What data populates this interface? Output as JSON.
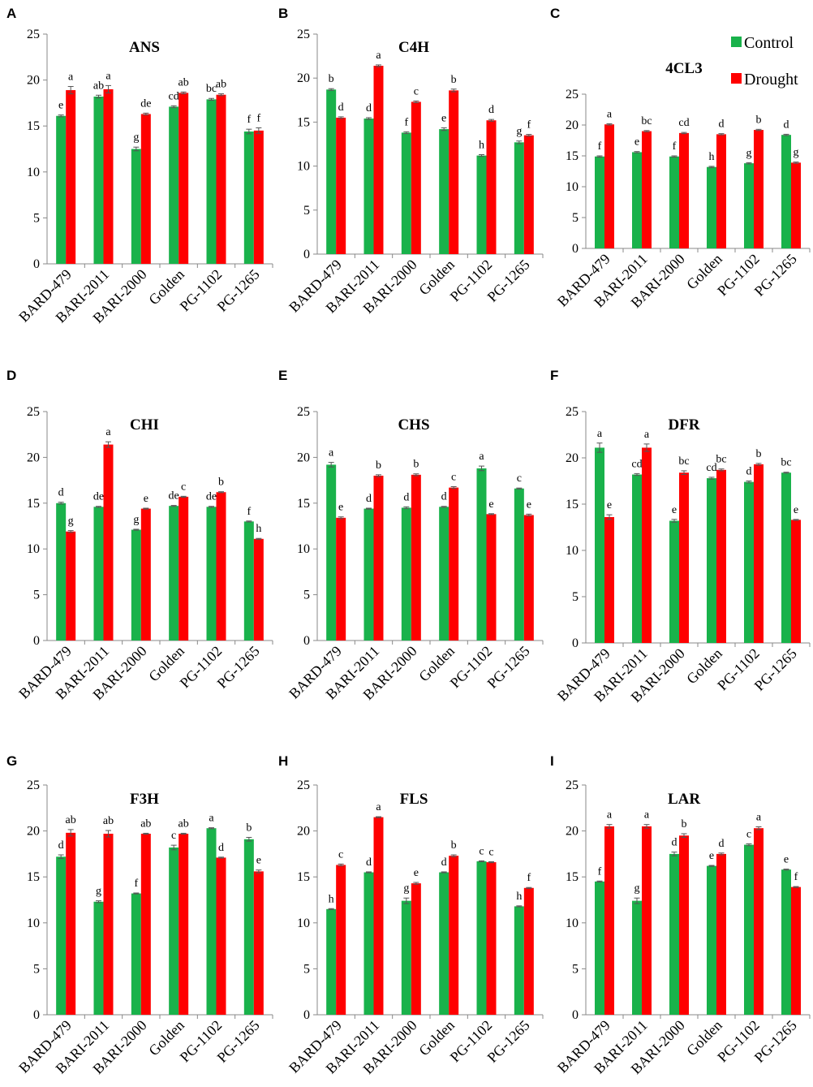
{
  "figure": {
    "legend": [
      {
        "name": "Control",
        "color": "#19b24b"
      },
      {
        "name": "Drought",
        "color": "#ff0000"
      }
    ]
  },
  "chart_data": [
    {
      "panel": "A",
      "type": "bar",
      "title": "ANS",
      "ylim": [
        0,
        25
      ],
      "yticks": [
        0,
        5,
        10,
        15,
        20,
        25
      ],
      "categories": [
        "BARD-479",
        "BARI-2011",
        "BARI-2000",
        "Golden",
        "PG-1102",
        "PG-1265"
      ],
      "series": [
        {
          "name": "Control",
          "values": [
            16.1,
            18.2,
            12.5,
            17.1,
            17.9,
            14.4
          ],
          "errors": [
            0.1,
            0.15,
            0.2,
            0.1,
            0.1,
            0.25
          ],
          "labels": [
            "e",
            "ab",
            "g",
            "cd",
            "bc",
            "f"
          ]
        },
        {
          "name": "Drought",
          "values": [
            18.9,
            19.0,
            16.3,
            18.6,
            18.4,
            14.5
          ],
          "errors": [
            0.4,
            0.4,
            0.1,
            0.1,
            0.1,
            0.3
          ],
          "labels": [
            "a",
            "a",
            "de",
            "ab",
            "ab",
            "f"
          ]
        }
      ]
    },
    {
      "panel": "B",
      "type": "bar",
      "title": "C4H",
      "ylim": [
        0,
        25
      ],
      "yticks": [
        0,
        5,
        10,
        15,
        20,
        25
      ],
      "categories": [
        "BARD-479",
        "BARI-2011",
        "BARI-2000",
        "Golden",
        "PG-1102",
        "PG-1265"
      ],
      "series": [
        {
          "name": "Control",
          "values": [
            18.7,
            15.4,
            13.8,
            14.2,
            11.2,
            12.7
          ],
          "errors": [
            0.1,
            0.1,
            0.1,
            0.15,
            0.1,
            0.15
          ],
          "labels": [
            "b",
            "d",
            "f",
            "e",
            "h",
            "g"
          ]
        },
        {
          "name": "Drought",
          "values": [
            15.5,
            21.4,
            17.3,
            18.6,
            15.2,
            13.5
          ],
          "errors": [
            0.1,
            0.1,
            0.1,
            0.15,
            0.1,
            0.1
          ],
          "labels": [
            "d",
            "a",
            "c",
            "b",
            "d",
            "f"
          ]
        }
      ]
    },
    {
      "panel": "C",
      "type": "bar",
      "title": "4CL3",
      "ylim": [
        0,
        25
      ],
      "yticks": [
        0,
        5,
        10,
        15,
        20,
        25
      ],
      "categories": [
        "BARD-479",
        "BARI-2011",
        "BARI-2000",
        "Golden",
        "PG-1102",
        "PG-1265"
      ],
      "series": [
        {
          "name": "Control",
          "values": [
            14.9,
            15.6,
            14.9,
            13.2,
            13.8,
            18.4
          ],
          "errors": [
            0.1,
            0.1,
            0.1,
            0.1,
            0.1,
            0.1
          ],
          "labels": [
            "f",
            "e",
            "f",
            "h",
            "g",
            "d"
          ]
        },
        {
          "name": "Drought",
          "values": [
            20.1,
            19.0,
            18.7,
            18.5,
            19.2,
            13.9
          ],
          "errors": [
            0.1,
            0.1,
            0.1,
            0.1,
            0.1,
            0.1
          ],
          "labels": [
            "a",
            "bc",
            "cd",
            "d",
            "b",
            "g"
          ]
        }
      ]
    },
    {
      "panel": "D",
      "type": "bar",
      "title": "CHI",
      "ylim": [
        0,
        25
      ],
      "yticks": [
        0,
        5,
        10,
        15,
        20,
        25
      ],
      "categories": [
        "BARD-479",
        "BARI-2011",
        "BARI-2000",
        "Golden",
        "PG-1102",
        "PG-1265"
      ],
      "series": [
        {
          "name": "Control",
          "values": [
            15.0,
            14.6,
            12.1,
            14.7,
            14.6,
            13.0
          ],
          "errors": [
            0.1,
            0.05,
            0.05,
            0.05,
            0.05,
            0.05
          ],
          "labels": [
            "d",
            "de",
            "g",
            "de",
            "de",
            "f"
          ]
        },
        {
          "name": "Drought",
          "values": [
            11.9,
            21.4,
            14.4,
            15.7,
            16.2,
            11.1
          ],
          "errors": [
            0.1,
            0.3,
            0.05,
            0.05,
            0.05,
            0.05
          ],
          "labels": [
            "g",
            "a",
            "e",
            "c",
            "b",
            "h"
          ]
        }
      ]
    },
    {
      "panel": "E",
      "type": "bar",
      "title": "CHS",
      "ylim": [
        0,
        25
      ],
      "yticks": [
        0,
        5,
        10,
        15,
        20,
        25
      ],
      "categories": [
        "BARD-479",
        "BARI-2011",
        "BARI-2000",
        "Golden",
        "PG-1102",
        "PG-1265"
      ],
      "series": [
        {
          "name": "Control",
          "values": [
            19.2,
            14.4,
            14.5,
            14.6,
            18.8,
            16.6
          ],
          "errors": [
            0.25,
            0.05,
            0.1,
            0.05,
            0.25,
            0.05
          ],
          "labels": [
            "a",
            "d",
            "d",
            "d",
            "a",
            "c"
          ]
        },
        {
          "name": "Drought",
          "values": [
            13.4,
            18.0,
            18.1,
            16.7,
            13.8,
            13.7
          ],
          "errors": [
            0.1,
            0.1,
            0.1,
            0.1,
            0.05,
            0.1
          ],
          "labels": [
            "e",
            "b",
            "b",
            "c",
            "e",
            "e"
          ]
        }
      ]
    },
    {
      "panel": "F",
      "type": "bar",
      "title": "DFR",
      "ylim": [
        0,
        25
      ],
      "yticks": [
        0,
        5,
        10,
        15,
        20,
        25
      ],
      "categories": [
        "BARD-479",
        "BARI-2011",
        "BARI-2000",
        "Golden",
        "PG-1102",
        "PG-1265"
      ],
      "series": [
        {
          "name": "Control",
          "values": [
            21.1,
            18.2,
            13.2,
            17.8,
            17.4,
            18.4
          ],
          "errors": [
            0.5,
            0.1,
            0.15,
            0.1,
            0.1,
            0.05
          ],
          "labels": [
            "a",
            "cd",
            "e",
            "cd",
            "d",
            "bc"
          ]
        },
        {
          "name": "Drought",
          "values": [
            13.6,
            21.1,
            18.4,
            18.7,
            19.3,
            13.3
          ],
          "errors": [
            0.25,
            0.4,
            0.2,
            0.1,
            0.1,
            0.05
          ],
          "labels": [
            "e",
            "a",
            "bc",
            "bc",
            "b",
            "e"
          ]
        }
      ]
    },
    {
      "panel": "G",
      "type": "bar",
      "title": "F3H",
      "ylim": [
        0,
        25
      ],
      "yticks": [
        0,
        5,
        10,
        15,
        20,
        25
      ],
      "categories": [
        "BARD-479",
        "BARI-2011",
        "BARI-2000",
        "Golden",
        "PG-1102",
        "PG-1265"
      ],
      "series": [
        {
          "name": "Control",
          "values": [
            17.2,
            12.3,
            13.2,
            18.2,
            20.3,
            19.1
          ],
          "errors": [
            0.2,
            0.1,
            0.05,
            0.25,
            0.05,
            0.2
          ],
          "labels": [
            "d",
            "g",
            "f",
            "c",
            "a",
            "b"
          ]
        },
        {
          "name": "Drought",
          "values": [
            19.8,
            19.7,
            19.7,
            19.7,
            17.1,
            15.6
          ],
          "errors": [
            0.35,
            0.35,
            0.05,
            0.05,
            0.05,
            0.15
          ],
          "labels": [
            "ab",
            "ab",
            "ab",
            "ab",
            "d",
            "e"
          ]
        }
      ]
    },
    {
      "panel": "H",
      "type": "bar",
      "title": "FLS",
      "ylim": [
        0,
        25
      ],
      "yticks": [
        0,
        5,
        10,
        15,
        20,
        25
      ],
      "categories": [
        "BARD-479",
        "BARI-2011",
        "BARI-2000",
        "Golden",
        "PG-1102",
        "PG-1265"
      ],
      "series": [
        {
          "name": "Control",
          "values": [
            11.5,
            15.5,
            12.4,
            15.5,
            16.7,
            11.8
          ],
          "errors": [
            0.05,
            0.05,
            0.3,
            0.05,
            0.05,
            0.05
          ],
          "labels": [
            "h",
            "d",
            "g",
            "d",
            "c",
            "h"
          ]
        },
        {
          "name": "Drought",
          "values": [
            16.3,
            21.5,
            14.3,
            17.3,
            16.6,
            13.8
          ],
          "errors": [
            0.1,
            0.05,
            0.1,
            0.1,
            0.05,
            0.05
          ],
          "labels": [
            "c",
            "a",
            "e",
            "b",
            "c",
            "f"
          ]
        }
      ]
    },
    {
      "panel": "I",
      "type": "bar",
      "title": "LAR",
      "ylim": [
        0,
        25
      ],
      "yticks": [
        0,
        5,
        10,
        15,
        20,
        25
      ],
      "categories": [
        "BARD-479",
        "BARI-2011",
        "BARI-2000",
        "Golden",
        "PG-1102",
        "PG-1265"
      ],
      "series": [
        {
          "name": "Control",
          "values": [
            14.5,
            12.4,
            17.5,
            16.2,
            18.5,
            15.8
          ],
          "errors": [
            0.05,
            0.3,
            0.2,
            0.05,
            0.1,
            0.05
          ],
          "labels": [
            "f",
            "g",
            "d",
            "e",
            "c",
            "e"
          ]
        },
        {
          "name": "Drought",
          "values": [
            20.5,
            20.5,
            19.5,
            17.5,
            20.3,
            13.9
          ],
          "errors": [
            0.2,
            0.2,
            0.2,
            0.1,
            0.15,
            0.05
          ],
          "labels": [
            "a",
            "a",
            "b",
            "d",
            "a",
            "f"
          ]
        }
      ]
    }
  ]
}
